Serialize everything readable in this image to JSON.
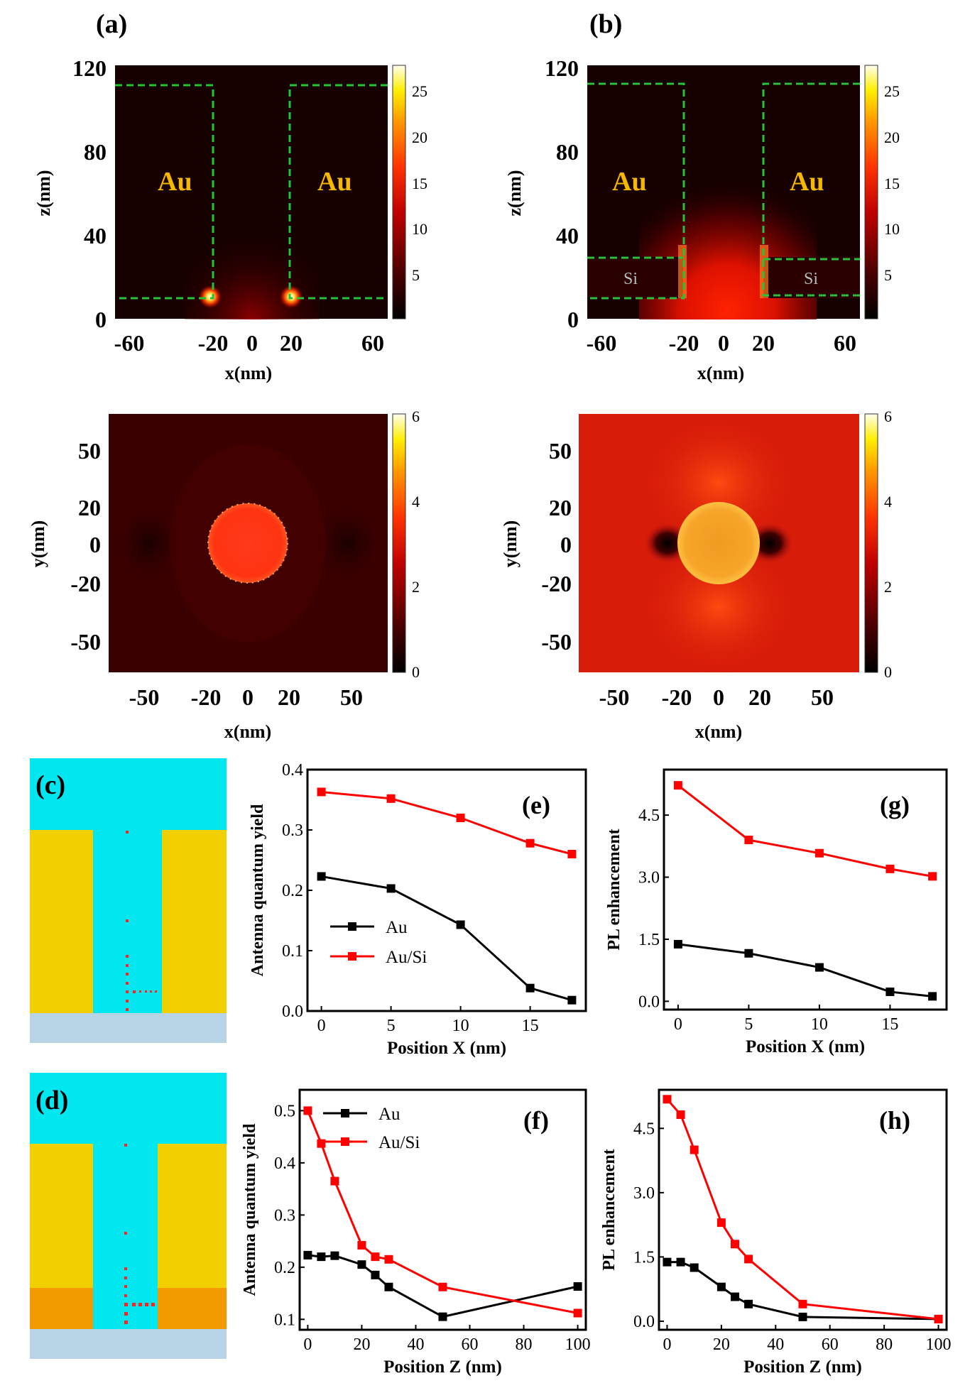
{
  "chart_data": [
    {
      "id": "a_top",
      "type": "heatmap",
      "panel_label": "(a)",
      "xlabel": "x(nm)",
      "ylabel": "z(nm)",
      "xlim": [
        -75,
        75
      ],
      "ylim": [
        0,
        120
      ],
      "xticks": [
        "-60",
        "-20",
        "0",
        "20",
        "60"
      ],
      "xtick_values": [
        -60,
        -20,
        0,
        20,
        60
      ],
      "yticks": [
        "0",
        "40",
        "80",
        "120"
      ],
      "ytick_values": [
        0,
        40,
        80,
        120
      ],
      "colorbar": {
        "min": 0,
        "max": 28,
        "ticks": [
          "5",
          "10",
          "15",
          "20",
          "25"
        ],
        "tick_values": [
          5,
          10,
          15,
          20,
          25
        ]
      },
      "regions": [
        {
          "label": "Au",
          "x": [
            -75,
            -22
          ],
          "z": [
            10,
            112
          ]
        },
        {
          "label": "Au",
          "x": [
            22,
            75
          ],
          "z": [
            10,
            112
          ]
        }
      ],
      "hotspots": [
        {
          "x": -22,
          "z": 10
        },
        {
          "x": 22,
          "z": 10
        }
      ]
    },
    {
      "id": "b_top",
      "type": "heatmap",
      "panel_label": "(b)",
      "xlabel": "x(nm)",
      "ylabel": "z(nm)",
      "xlim": [
        -75,
        75
      ],
      "ylim": [
        0,
        120
      ],
      "xticks": [
        "-60",
        "-20",
        "0",
        "20",
        "60"
      ],
      "xtick_values": [
        -60,
        -20,
        0,
        20,
        60
      ],
      "yticks": [
        "0",
        "40",
        "80",
        "120"
      ],
      "ytick_values": [
        0,
        40,
        80,
        120
      ],
      "colorbar": {
        "min": 0,
        "max": 28,
        "ticks": [
          "5",
          "10",
          "15",
          "20",
          "25"
        ],
        "tick_values": [
          5,
          10,
          15,
          20,
          25
        ]
      },
      "regions": [
        {
          "label": "Au",
          "x": [
            -75,
            -22
          ],
          "z": [
            30,
            112
          ]
        },
        {
          "label": "Au",
          "x": [
            22,
            75
          ],
          "z": [
            30,
            112
          ]
        },
        {
          "label": "Si",
          "x": [
            -75,
            -22
          ],
          "z": [
            10,
            30
          ]
        },
        {
          "label": "Si",
          "x": [
            22,
            75
          ],
          "z": [
            10,
            30
          ]
        }
      ]
    },
    {
      "id": "a_bottom",
      "type": "heatmap",
      "xlabel": "x(nm)",
      "ylabel": "y(nm)",
      "xlim": [
        -70,
        70
      ],
      "ylim": [
        -70,
        70
      ],
      "xticks": [
        "-50",
        "-20",
        "0",
        "20",
        "50"
      ],
      "xtick_values": [
        -50,
        -20,
        0,
        20,
        50
      ],
      "yticks": [
        "50",
        "20",
        "0",
        "-20",
        "-50"
      ],
      "ytick_values": [
        50,
        20,
        0,
        -20,
        -50
      ],
      "colorbar": {
        "min": 0,
        "max": 6,
        "ticks": [
          "0",
          "2",
          "4",
          "6"
        ],
        "tick_values": [
          0,
          2,
          4,
          6
        ]
      }
    },
    {
      "id": "b_bottom",
      "type": "heatmap",
      "xlabel": "x(nm)",
      "ylabel": "y(nm)",
      "xlim": [
        -70,
        70
      ],
      "ylim": [
        -70,
        70
      ],
      "xticks": [
        "-50",
        "-20",
        "0",
        "20",
        "50"
      ],
      "xtick_values": [
        -50,
        -20,
        0,
        20,
        50
      ],
      "yticks": [
        "50",
        "20",
        "0",
        "-20",
        "-50"
      ],
      "ytick_values": [
        50,
        20,
        0,
        -20,
        -50
      ],
      "colorbar": {
        "min": 0,
        "max": 6,
        "ticks": [
          "0",
          "2",
          "4",
          "6"
        ],
        "tick_values": [
          0,
          2,
          4,
          6
        ]
      }
    },
    {
      "id": "e",
      "type": "line",
      "panel_label": "(e)",
      "xlabel": "Position X (nm)",
      "ylabel": "Antenna quantum yield",
      "xlim": [
        -1,
        19
      ],
      "ylim": [
        0,
        0.4
      ],
      "xticks": [
        "0",
        "5",
        "10",
        "15"
      ],
      "xtick_values": [
        0,
        5,
        10,
        15
      ],
      "yticks": [
        "0.0",
        "0.1",
        "0.2",
        "0.3",
        "0.4"
      ],
      "ytick_values": [
        0,
        0.1,
        0.2,
        0.3,
        0.4
      ],
      "legend": "center-left",
      "series": [
        {
          "name": "Au",
          "color": "#000000",
          "x": [
            0,
            5,
            10,
            15,
            18
          ],
          "y": [
            0.223,
            0.203,
            0.143,
            0.038,
            0.018
          ]
        },
        {
          "name": "Au/Si",
          "color": "#ff0000",
          "x": [
            0,
            5,
            10,
            15,
            18
          ],
          "y": [
            0.363,
            0.352,
            0.32,
            0.278,
            0.26
          ]
        }
      ]
    },
    {
      "id": "g",
      "type": "line",
      "panel_label": "(g)",
      "xlabel": "Position X (nm)",
      "ylabel": "PL enhancement",
      "xlim": [
        -1,
        19
      ],
      "ylim": [
        -0.2,
        5.6
      ],
      "xticks": [
        "0",
        "5",
        "10",
        "15"
      ],
      "xtick_values": [
        0,
        5,
        10,
        15
      ],
      "yticks": [
        "0.0",
        "1.5",
        "3.0",
        "4.5"
      ],
      "ytick_values": [
        0,
        1.5,
        3.0,
        4.5
      ],
      "series": [
        {
          "name": "Au",
          "color": "#000000",
          "x": [
            0,
            5,
            10,
            15,
            18
          ],
          "y": [
            1.38,
            1.16,
            0.82,
            0.23,
            0.12
          ]
        },
        {
          "name": "Au/Si",
          "color": "#ff0000",
          "x": [
            0,
            5,
            10,
            15,
            18
          ],
          "y": [
            5.22,
            3.9,
            3.58,
            3.2,
            3.02
          ]
        }
      ]
    },
    {
      "id": "f",
      "type": "line",
      "panel_label": "(f)",
      "xlabel": "Position Z (nm)",
      "ylabel": "Antenna quantum yield",
      "xlim": [
        -3,
        103
      ],
      "ylim": [
        0.08,
        0.54
      ],
      "xticks": [
        "0",
        "20",
        "40",
        "60",
        "80",
        "100"
      ],
      "xtick_values": [
        0,
        20,
        40,
        60,
        80,
        100
      ],
      "yticks": [
        "0.1",
        "0.2",
        "0.3",
        "0.4",
        "0.5"
      ],
      "ytick_values": [
        0.1,
        0.2,
        0.3,
        0.4,
        0.5
      ],
      "legend": "top",
      "series": [
        {
          "name": "Au",
          "color": "#000000",
          "x": [
            0,
            5,
            10,
            20,
            25,
            30,
            50,
            100
          ],
          "y": [
            0.223,
            0.22,
            0.222,
            0.205,
            0.185,
            0.162,
            0.105,
            0.163
          ]
        },
        {
          "name": "Au/Si",
          "color": "#ff0000",
          "x": [
            0,
            5,
            10,
            20,
            25,
            30,
            50,
            100
          ],
          "y": [
            0.5,
            0.437,
            0.365,
            0.242,
            0.22,
            0.215,
            0.162,
            0.112
          ]
        }
      ]
    },
    {
      "id": "h",
      "type": "line",
      "panel_label": "(h)",
      "xlabel": "Position Z (nm)",
      "ylabel": "PL enhancement",
      "xlim": [
        -3,
        103
      ],
      "ylim": [
        -0.2,
        5.4
      ],
      "xticks": [
        "0",
        "20",
        "40",
        "60",
        "80",
        "100"
      ],
      "xtick_values": [
        0,
        20,
        40,
        60,
        80,
        100
      ],
      "yticks": [
        "0.0",
        "1.5",
        "3.0",
        "4.5"
      ],
      "ytick_values": [
        0,
        1.5,
        3.0,
        4.5
      ],
      "series": [
        {
          "name": "Au",
          "color": "#000000",
          "x": [
            0,
            5,
            10,
            20,
            25,
            30,
            50,
            100
          ],
          "y": [
            1.38,
            1.38,
            1.25,
            0.8,
            0.57,
            0.4,
            0.1,
            0.05
          ]
        },
        {
          "name": "Au/Si",
          "color": "#ff0000",
          "x": [
            0,
            5,
            10,
            20,
            25,
            30,
            50,
            100
          ],
          "y": [
            5.18,
            4.82,
            4.0,
            2.3,
            1.8,
            1.45,
            0.4,
            0.05
          ]
        }
      ]
    }
  ],
  "schematics": {
    "c": {
      "panel_label": "(c)"
    },
    "d": {
      "panel_label": "(d)"
    }
  },
  "colors": {
    "au": "#f2cf00",
    "si": "#f29a00",
    "medium": "#00e7ef",
    "substrate": "#b7d3e6",
    "boundary": "#27c23a",
    "dipole": "#ff2222",
    "au_series": "#000000",
    "ausi_series": "#ff0000"
  }
}
